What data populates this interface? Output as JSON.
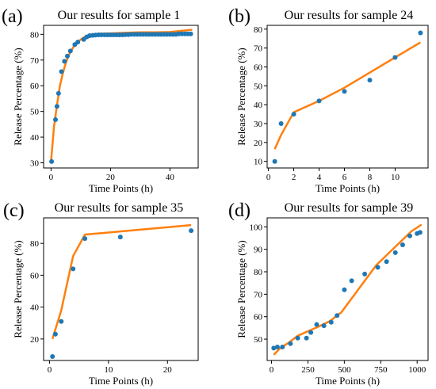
{
  "colors": {
    "points": "#1f77b4",
    "line": "#ff7f0e",
    "axis": "#000000"
  },
  "chart_data": [
    {
      "panel": "(a)",
      "type": "scatter+line",
      "title": "Our results for sample 1",
      "xlabel": "Time Points (h)",
      "ylabel": "Release Percentage (%)",
      "xlim": [
        -2.5,
        49.5
      ],
      "ylim": [
        28,
        83.5
      ],
      "xticks": [
        0,
        20,
        40
      ],
      "yticks": [
        30,
        40,
        50,
        60,
        70,
        80
      ],
      "points": [
        [
          0.2,
          30.5
        ],
        [
          1.5,
          46.8
        ],
        [
          2,
          52
        ],
        [
          2.5,
          57
        ],
        [
          3.5,
          65.5
        ],
        [
          4.5,
          69.5
        ],
        [
          5.5,
          71.5
        ],
        [
          6.5,
          73.5
        ],
        [
          8,
          76
        ],
        [
          9,
          77
        ],
        [
          11,
          78
        ],
        [
          12,
          79
        ],
        [
          13,
          79.5
        ],
        [
          14,
          79.6
        ],
        [
          15,
          79.7
        ],
        [
          16,
          79.8
        ],
        [
          17,
          79.8
        ],
        [
          18,
          79.8
        ],
        [
          19,
          79.8
        ],
        [
          20,
          79.8
        ],
        [
          21,
          79.8
        ],
        [
          22,
          79.8
        ],
        [
          23,
          79.8
        ],
        [
          24,
          79.8
        ],
        [
          25,
          79.9
        ],
        [
          26,
          79.9
        ],
        [
          27,
          80
        ],
        [
          28,
          80
        ],
        [
          29,
          80
        ],
        [
          30,
          80
        ],
        [
          31,
          80
        ],
        [
          32,
          80
        ],
        [
          33,
          80
        ],
        [
          34,
          80
        ],
        [
          35,
          80
        ],
        [
          36,
          80
        ],
        [
          37,
          80
        ],
        [
          38,
          80
        ],
        [
          39,
          80
        ],
        [
          40,
          80
        ],
        [
          41,
          80
        ],
        [
          42,
          80
        ],
        [
          43,
          80.2
        ],
        [
          44,
          80.2
        ],
        [
          45,
          80.2
        ],
        [
          46,
          80.2
        ],
        [
          47,
          80.2
        ]
      ],
      "line": [
        [
          0,
          30.5
        ],
        [
          1,
          44
        ],
        [
          2,
          52.5
        ],
        [
          3,
          60
        ],
        [
          4,
          65
        ],
        [
          5,
          69
        ],
        [
          6,
          72
        ],
        [
          8,
          76
        ],
        [
          10,
          78
        ],
        [
          12,
          79.5
        ],
        [
          15,
          80.2
        ],
        [
          20,
          80.4
        ],
        [
          25,
          80.6
        ],
        [
          30,
          80.8
        ],
        [
          35,
          80.8
        ],
        [
          40,
          80.9
        ],
        [
          45,
          81.5
        ],
        [
          47.5,
          81.8
        ]
      ]
    },
    {
      "panel": "(b)",
      "type": "scatter+line",
      "title": "Our results for sample 24",
      "xlabel": "Time Points (h)",
      "ylabel": "Release Percentage (%)",
      "xlim": [
        -0.1,
        12.6
      ],
      "ylim": [
        6.5,
        82
      ],
      "xticks": [
        0,
        2,
        4,
        6,
        8,
        10
      ],
      "yticks": [
        10,
        20,
        30,
        40,
        50,
        60,
        70,
        80
      ],
      "points": [
        [
          0.5,
          10
        ],
        [
          1,
          30
        ],
        [
          2,
          35
        ],
        [
          4,
          42
        ],
        [
          6,
          47
        ],
        [
          8,
          53
        ],
        [
          10,
          65
        ],
        [
          12,
          78
        ]
      ],
      "line": [
        [
          0.5,
          16.5
        ],
        [
          1,
          24
        ],
        [
          2,
          36
        ],
        [
          4,
          42
        ],
        [
          6,
          49
        ],
        [
          8,
          57
        ],
        [
          10,
          65
        ],
        [
          12,
          73
        ]
      ]
    },
    {
      "panel": "(c)",
      "type": "scatter+line",
      "title": "Our results for sample 35",
      "xlabel": "Time Points (h)",
      "ylabel": "Release Percentage (%)",
      "xlim": [
        -1,
        25.2
      ],
      "ylim": [
        6.5,
        96
      ],
      "xticks": [
        0,
        10,
        20
      ],
      "yticks": [
        20,
        40,
        60,
        80
      ],
      "points": [
        [
          0.5,
          9
        ],
        [
          1,
          23
        ],
        [
          2,
          31
        ],
        [
          4,
          64
        ],
        [
          6,
          83
        ],
        [
          12,
          84
        ],
        [
          24,
          88
        ]
      ],
      "line": [
        [
          0.5,
          20
        ],
        [
          2,
          38
        ],
        [
          4,
          72
        ],
        [
          6,
          85.5
        ],
        [
          12,
          87.5
        ],
        [
          24,
          91.5
        ]
      ]
    },
    {
      "panel": "(d)",
      "type": "scatter+line",
      "title": "Our results for sample 39",
      "xlabel": "Time Points (h)",
      "ylabel": "Release Percentage (%)",
      "xlim": [
        -30,
        1075
      ],
      "ylim": [
        40.5,
        104
      ],
      "xticks": [
        0,
        250,
        500,
        750,
        1000
      ],
      "yticks": [
        50,
        60,
        70,
        80,
        90,
        100
      ],
      "points": [
        [
          15,
          46
        ],
        [
          40,
          46.5
        ],
        [
          75,
          46.5
        ],
        [
          130,
          48
        ],
        [
          180,
          50.5
        ],
        [
          240,
          50.5
        ],
        [
          270,
          53
        ],
        [
          310,
          56.5
        ],
        [
          360,
          56
        ],
        [
          410,
          57.5
        ],
        [
          450,
          60.5
        ],
        [
          500,
          72
        ],
        [
          550,
          76
        ],
        [
          640,
          79
        ],
        [
          730,
          82
        ],
        [
          790,
          84.5
        ],
        [
          850,
          88.5
        ],
        [
          900,
          92
        ],
        [
          950,
          96
        ],
        [
          1000,
          97
        ],
        [
          1020,
          97.5
        ]
      ],
      "line": [
        [
          15,
          43
        ],
        [
          60,
          46
        ],
        [
          120,
          48.5
        ],
        [
          180,
          51.5
        ],
        [
          250,
          53.5
        ],
        [
          320,
          55.5
        ],
        [
          400,
          58
        ],
        [
          480,
          62
        ],
        [
          560,
          69
        ],
        [
          640,
          76
        ],
        [
          720,
          83
        ],
        [
          800,
          88
        ],
        [
          880,
          93
        ],
        [
          960,
          98
        ],
        [
          1030,
          101
        ]
      ]
    }
  ]
}
